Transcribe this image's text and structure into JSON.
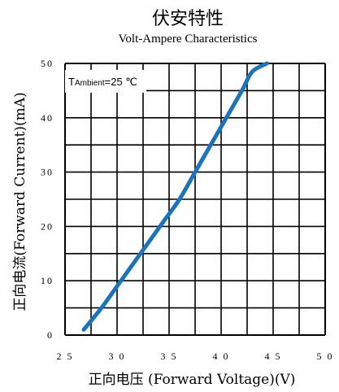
{
  "chart_data": {
    "type": "line",
    "title": "伏安特性",
    "subtitle": "Volt-Ampere Characteristics",
    "xlabel": "正向电压 (Forward Voltage)(V)",
    "ylabel": "正向电流(Forward Current)(mA)",
    "xlim": [
      2.5,
      5.0
    ],
    "ylim": [
      0,
      50
    ],
    "x_ticks": [
      "2.5",
      "3.0",
      "3.5",
      "4.0",
      "4.5",
      "5.0"
    ],
    "y_ticks": [
      "0",
      "10",
      "20",
      "30",
      "40",
      "50"
    ],
    "grid": true,
    "annotation": {
      "prefix": "T",
      "sub": "Ambient",
      "value": "=25 ℃"
    },
    "series": [
      {
        "color": "#1a73c0",
        "x": [
          2.68,
          2.85,
          3.0,
          3.15,
          3.3,
          3.45,
          3.6,
          3.75,
          3.9,
          4.05,
          4.2,
          4.3,
          4.44
        ],
        "y": [
          1,
          5,
          9,
          13,
          17,
          21,
          25,
          30,
          35,
          40,
          45,
          48.5,
          50
        ]
      }
    ]
  }
}
